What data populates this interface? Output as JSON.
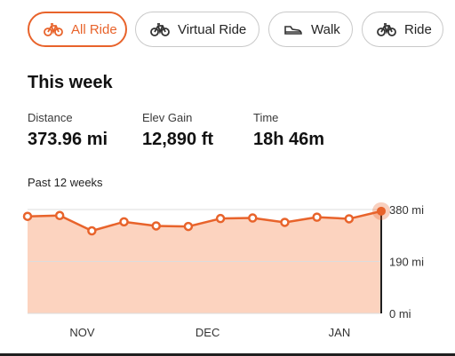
{
  "filters": [
    {
      "label": "All Ride",
      "icon": "bike-icon",
      "active": true
    },
    {
      "label": "Virtual Ride",
      "icon": "bike-icon",
      "active": false
    },
    {
      "label": "Walk",
      "icon": "shoe-icon",
      "active": false
    },
    {
      "label": "Ride",
      "icon": "bike-icon",
      "active": false
    }
  ],
  "summary": {
    "heading": "This week",
    "distance_label": "Distance",
    "distance_value": "373.96 mi",
    "elev_label": "Elev Gain",
    "elev_value": "12,890 ft",
    "time_label": "Time",
    "time_value": "18h 46m"
  },
  "period_label": "Past 12 weeks",
  "colors": {
    "accent": "#e8632b",
    "fill": "#fcd3bf",
    "grid": "#dcdcdc"
  },
  "chart_data": {
    "type": "area",
    "x": [
      1,
      2,
      3,
      4,
      5,
      6,
      7,
      8,
      9,
      10,
      11,
      12
    ],
    "values": [
      355,
      358,
      302,
      335,
      320,
      318,
      347,
      349,
      333,
      352,
      346,
      374
    ],
    "ylim": [
      0,
      380
    ],
    "yticks": [
      {
        "value": 380,
        "label": "380 mi"
      },
      {
        "value": 190,
        "label": "190 mi"
      },
      {
        "value": 0,
        "label": "0 mi"
      }
    ],
    "xticks": [
      {
        "x": 2.7,
        "label": "NOV"
      },
      {
        "x": 6.6,
        "label": "DEC"
      },
      {
        "x": 10.7,
        "label": "JAN"
      }
    ],
    "highlight_index": 11,
    "grid": true
  }
}
